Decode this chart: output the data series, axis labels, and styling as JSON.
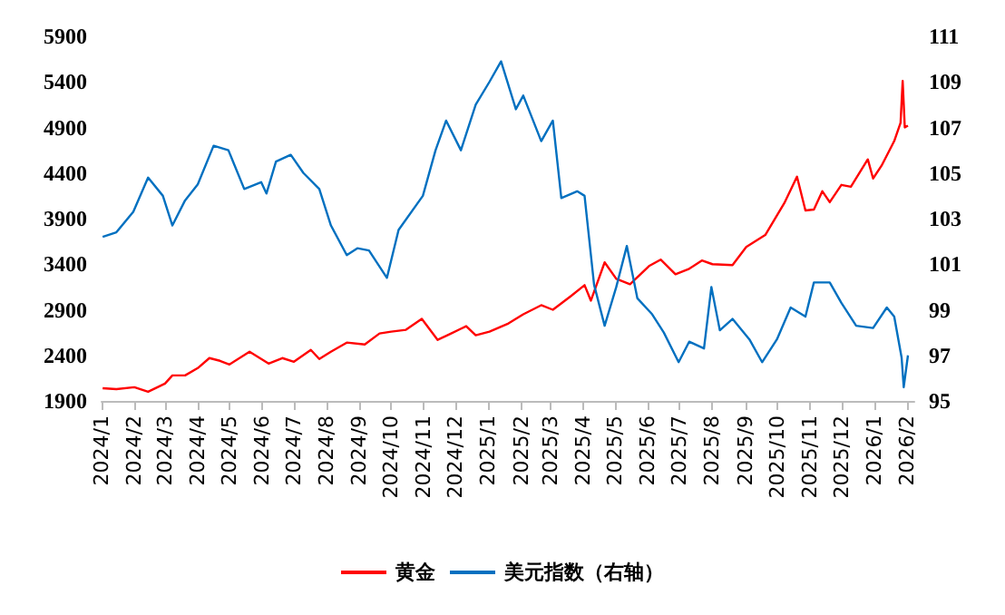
{
  "chart_data": {
    "type": "line",
    "legend": "bottom",
    "grid": false,
    "marker": "none",
    "line_style": "solid",
    "xlim": [
      "2024-01",
      "2026-02-08"
    ],
    "xticks": [
      {
        "value": "2024-01",
        "label": "2024/1"
      },
      {
        "value": "2024-02",
        "label": "2024/2"
      },
      {
        "value": "2024-03",
        "label": "2024/3"
      },
      {
        "value": "2024-04",
        "label": "2024/4"
      },
      {
        "value": "2024-05",
        "label": "2024/5"
      },
      {
        "value": "2024-06",
        "label": "2024/6"
      },
      {
        "value": "2024-07",
        "label": "2024/7"
      },
      {
        "value": "2024-08",
        "label": "2024/8"
      },
      {
        "value": "2024-09",
        "label": "2024/9"
      },
      {
        "value": "2024-10",
        "label": "2024/10"
      },
      {
        "value": "2024-11",
        "label": "2024/11"
      },
      {
        "value": "2024-12",
        "label": "2024/12"
      },
      {
        "value": "2025-01",
        "label": "2025/1"
      },
      {
        "value": "2025-02",
        "label": "2025/2"
      },
      {
        "value": "2025-03",
        "label": "2025/3"
      },
      {
        "value": "2025-04",
        "label": "2025/4"
      },
      {
        "value": "2025-05",
        "label": "2025/5"
      },
      {
        "value": "2025-06",
        "label": "2025/6"
      },
      {
        "value": "2025-07",
        "label": "2025/7"
      },
      {
        "value": "2025-08",
        "label": "2025/8"
      },
      {
        "value": "2025-09",
        "label": "2025/9"
      },
      {
        "value": "2025-10",
        "label": "2025/10"
      },
      {
        "value": "2025-11",
        "label": "2025/11"
      },
      {
        "value": "2025-12",
        "label": "2025/12"
      },
      {
        "value": "2026-01",
        "label": "2026/1"
      },
      {
        "value": "2026-02",
        "label": "2026/2"
      }
    ],
    "ylim": [
      1900,
      5900
    ],
    "yticks": [
      1900,
      2400,
      2900,
      3400,
      3900,
      4400,
      4900,
      5400,
      5900
    ],
    "y2lim": [
      95,
      111
    ],
    "y2ticks": [
      95,
      97,
      99,
      101,
      103,
      105,
      107,
      109,
      111
    ],
    "series": [
      {
        "name": "黄金",
        "color": "#ff0000",
        "x": [
          "2024-01-02",
          "2024-01-15",
          "2024-02-01",
          "2024-02-14",
          "2024-03-01",
          "2024-03-08",
          "2024-03-20",
          "2024-04-01",
          "2024-04-12",
          "2024-04-22",
          "2024-05-01",
          "2024-05-20",
          "2024-06-07",
          "2024-06-20",
          "2024-07-01",
          "2024-07-17",
          "2024-07-25",
          "2024-08-05",
          "2024-08-20",
          "2024-09-06",
          "2024-09-20",
          "2024-10-01",
          "2024-10-15",
          "2024-10-30",
          "2024-11-14",
          "2024-11-25",
          "2024-12-11",
          "2024-12-20",
          "2025-01-02",
          "2025-01-20",
          "2025-02-03",
          "2025-02-20",
          "2025-03-03",
          "2025-03-20",
          "2025-04-02",
          "2025-04-08",
          "2025-04-21",
          "2025-05-02",
          "2025-05-15",
          "2025-06-02",
          "2025-06-13",
          "2025-06-27",
          "2025-07-10",
          "2025-07-22",
          "2025-08-01",
          "2025-08-20",
          "2025-09-02",
          "2025-09-20",
          "2025-10-08",
          "2025-10-20",
          "2025-10-28",
          "2025-11-05",
          "2025-11-13",
          "2025-11-20",
          "2025-12-01",
          "2025-12-10",
          "2025-12-26",
          "2025-12-31",
          "2026-01-08",
          "2026-01-20",
          "2026-01-26",
          "2026-01-28",
          "2026-01-30",
          "2026-02-02"
        ],
        "values": [
          2040,
          2030,
          2050,
          2000,
          2090,
          2180,
          2180,
          2260,
          2370,
          2340,
          2300,
          2440,
          2310,
          2370,
          2330,
          2460,
          2360,
          2440,
          2540,
          2520,
          2640,
          2660,
          2680,
          2800,
          2570,
          2630,
          2720,
          2620,
          2660,
          2750,
          2850,
          2950,
          2900,
          3050,
          3170,
          3000,
          3420,
          3240,
          3180,
          3380,
          3450,
          3290,
          3350,
          3440,
          3400,
          3390,
          3590,
          3720,
          4070,
          4360,
          3990,
          4000,
          4200,
          4080,
          4270,
          4250,
          4550,
          4340,
          4480,
          4750,
          4950,
          5410,
          4900,
          4920
        ]
      },
      {
        "name": "美元指数（右轴）",
        "color": "#0070c0",
        "axis": "y2",
        "x": [
          "2024-01-02",
          "2024-01-15",
          "2024-01-31",
          "2024-02-14",
          "2024-02-28",
          "2024-03-08",
          "2024-03-20",
          "2024-04-01",
          "2024-04-16",
          "2024-04-30",
          "2024-05-15",
          "2024-05-31",
          "2024-06-05",
          "2024-06-14",
          "2024-06-28",
          "2024-07-10",
          "2024-07-25",
          "2024-08-05",
          "2024-08-20",
          "2024-08-30",
          "2024-09-10",
          "2024-09-27",
          "2024-10-08",
          "2024-10-31",
          "2024-11-12",
          "2024-11-22",
          "2024-12-06",
          "2024-12-20",
          "2025-01-02",
          "2025-01-13",
          "2025-01-27",
          "2025-02-03",
          "2025-02-20",
          "2025-03-03",
          "2025-03-11",
          "2025-03-26",
          "2025-04-02",
          "2025-04-11",
          "2025-04-21",
          "2025-05-02",
          "2025-05-12",
          "2025-05-22",
          "2025-06-05",
          "2025-06-16",
          "2025-06-30",
          "2025-07-10",
          "2025-07-24",
          "2025-07-31",
          "2025-08-08",
          "2025-08-20",
          "2025-09-05",
          "2025-09-17",
          "2025-10-01",
          "2025-10-14",
          "2025-10-28",
          "2025-11-05",
          "2025-11-20",
          "2025-12-01",
          "2025-12-15",
          "2025-12-31",
          "2026-01-13",
          "2026-01-20",
          "2026-01-27",
          "2026-01-29",
          "2026-02-02"
        ],
        "values": [
          102.2,
          102.4,
          103.3,
          104.8,
          104.0,
          102.7,
          103.8,
          104.5,
          106.2,
          106.0,
          104.3,
          104.6,
          104.1,
          105.5,
          105.8,
          105.0,
          104.3,
          102.7,
          101.4,
          101.7,
          101.6,
          100.4,
          102.5,
          104.0,
          106.0,
          107.3,
          106.0,
          108.0,
          109.0,
          109.9,
          107.8,
          108.4,
          106.4,
          107.3,
          103.9,
          104.2,
          104.0,
          100.1,
          98.3,
          100.0,
          101.8,
          99.5,
          98.8,
          98.0,
          96.7,
          97.6,
          97.3,
          100.0,
          98.1,
          98.6,
          97.7,
          96.7,
          97.7,
          99.1,
          98.7,
          100.2,
          100.2,
          99.3,
          98.3,
          98.2,
          99.1,
          98.7,
          96.9,
          95.6,
          97.0
        ]
      }
    ]
  }
}
